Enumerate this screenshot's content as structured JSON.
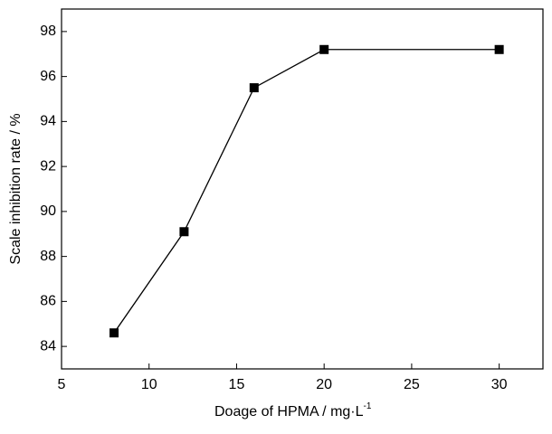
{
  "chart_data": {
    "type": "line",
    "x_label": "Doage of HPMA / mg·L",
    "x_label_superscript": "-1",
    "y_label": "Scale inhibition rate / %",
    "x": [
      8,
      12,
      16,
      20,
      30
    ],
    "series": [
      {
        "color": "#000000",
        "values": [
          84.6,
          89.1,
          95.5,
          97.2,
          97.2
        ]
      }
    ],
    "xlim": [
      5,
      32.5
    ],
    "xticks": [
      5,
      10,
      15,
      20,
      25,
      30
    ],
    "ylim": [
      83,
      99
    ],
    "yticks": [
      84,
      86,
      88,
      90,
      92,
      94,
      96,
      98
    ],
    "grid": false,
    "marker": "square"
  }
}
